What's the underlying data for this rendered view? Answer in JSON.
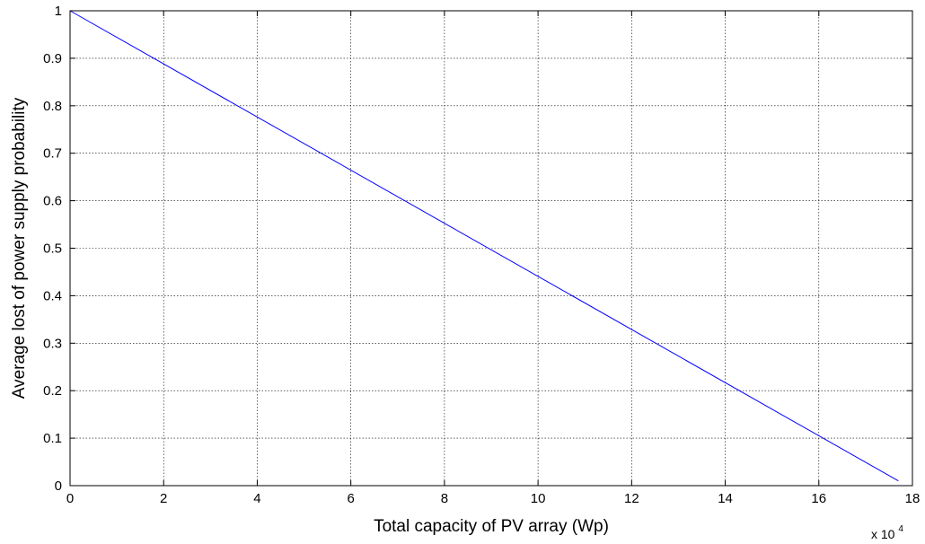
{
  "chart_data": {
    "type": "line",
    "title": "",
    "xlabel": "Total capacity of PV array (Wp)",
    "ylabel": "Average lost of power supply probability",
    "x_multiplier_label": "x 10",
    "x_multiplier_exponent": "4",
    "xlim": [
      0,
      18
    ],
    "ylim": [
      0,
      1
    ],
    "x_scale_factor": 10000,
    "x_ticks": [
      "0",
      "2",
      "4",
      "6",
      "8",
      "10",
      "12",
      "14",
      "16",
      "18"
    ],
    "y_ticks": [
      "0",
      "0.1",
      "0.2",
      "0.3",
      "0.4",
      "0.5",
      "0.6",
      "0.7",
      "0.8",
      "0.9",
      "1"
    ],
    "grid": true,
    "series": [
      {
        "color": "#0000ff",
        "x": [
          0,
          17.7
        ],
        "y": [
          1.0,
          0.01
        ]
      }
    ]
  }
}
